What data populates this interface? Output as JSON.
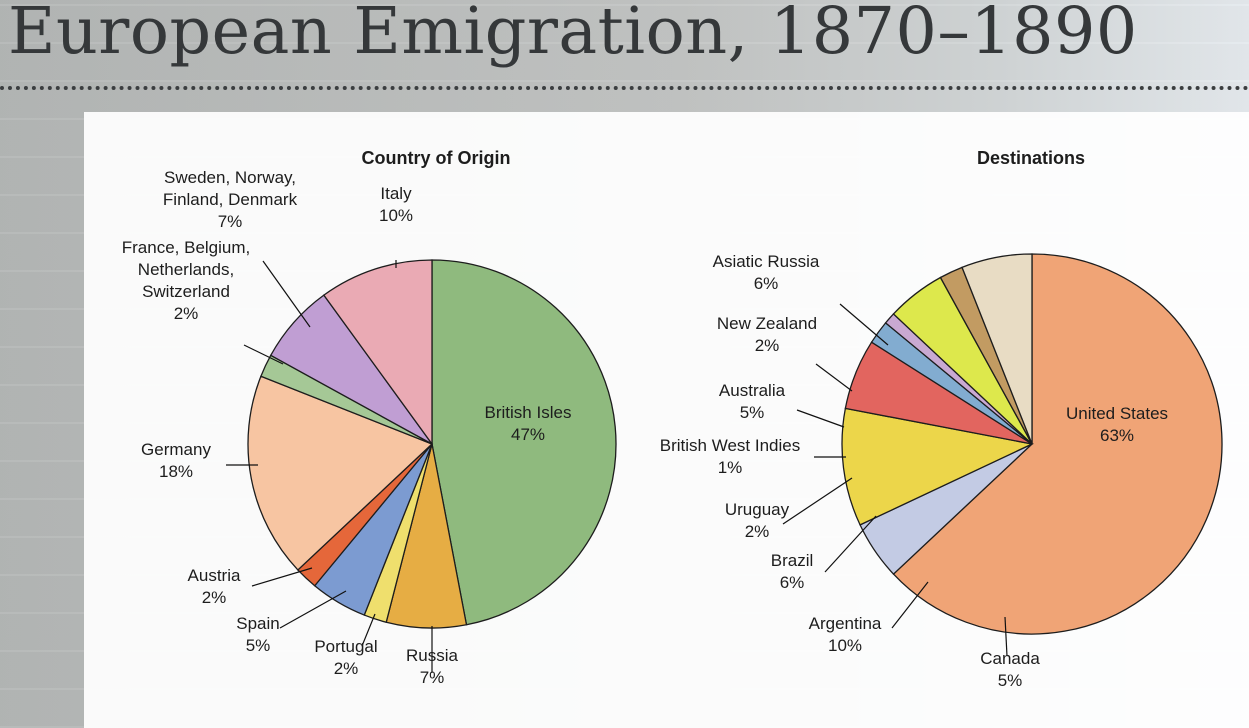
{
  "title": "European Emigration, 1870–1890",
  "chart_data": [
    {
      "type": "pie",
      "title": "Country of Origin",
      "slices": [
        {
          "label": "British Isles",
          "value": 47,
          "pct": "47%",
          "color": "#8fba7e"
        },
        {
          "label": "Russia",
          "value": 7,
          "pct": "7%",
          "color": "#e6ad44"
        },
        {
          "label": "Portugal",
          "value": 2,
          "pct": "2%",
          "color": "#efdf6d"
        },
        {
          "label": "Spain",
          "value": 5,
          "pct": "5%",
          "color": "#7c9bd1"
        },
        {
          "label": "Austria",
          "value": 2,
          "pct": "2%",
          "color": "#e5673a"
        },
        {
          "label": "Germany",
          "value": 18,
          "pct": "18%",
          "color": "#f7c5a2"
        },
        {
          "label": "France, Belgium, Netherlands, Switzerland",
          "label_lines": [
            "France, Belgium,",
            "Netherlands,",
            "Switzerland"
          ],
          "value": 2,
          "pct": "2%",
          "color": "#a5c896"
        },
        {
          "label": "Sweden, Norway, Finland, Denmark",
          "label_lines": [
            "Sweden, Norway,",
            "Finland, Denmark"
          ],
          "value": 7,
          "pct": "7%",
          "color": "#c09ed3"
        },
        {
          "label": "Italy",
          "value": 10,
          "pct": "10%",
          "color": "#eaaab4"
        }
      ]
    },
    {
      "type": "pie",
      "title": "Destinations",
      "slices": [
        {
          "label": "United States",
          "value": 63,
          "pct": "63%",
          "color": "#f0a476"
        },
        {
          "label": "Canada",
          "value": 5,
          "pct": "5%",
          "color": "#c3cbe4"
        },
        {
          "label": "Argentina",
          "value": 10,
          "pct": "10%",
          "color": "#ecd64a"
        },
        {
          "label": "Brazil",
          "value": 6,
          "pct": "6%",
          "color": "#e2655f"
        },
        {
          "label": "Uruguay",
          "value": 2,
          "pct": "2%",
          "color": "#82acd0"
        },
        {
          "label": "British West Indies",
          "value": 1,
          "pct": "1%",
          "color": "#c9a9d2"
        },
        {
          "label": "Australia",
          "value": 5,
          "pct": "5%",
          "color": "#dde84c"
        },
        {
          "label": "New Zealand",
          "value": 2,
          "pct": "2%",
          "color": "#c29b62"
        },
        {
          "label": "Asiatic Russia",
          "value": 6,
          "pct": "6%",
          "color": "#e8dcc4"
        }
      ]
    }
  ]
}
